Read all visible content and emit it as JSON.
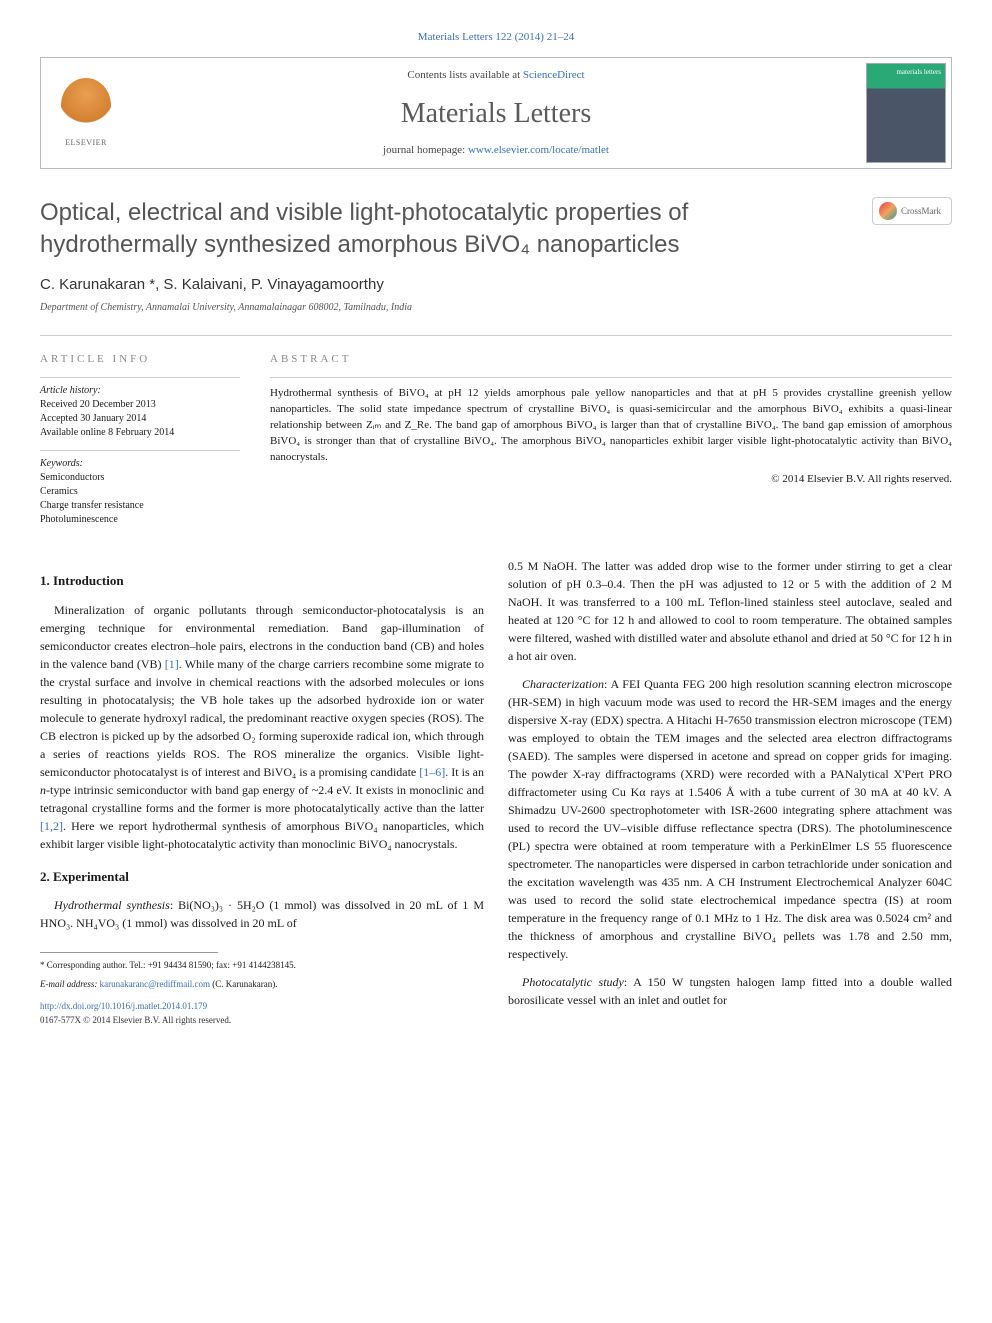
{
  "topLink": "Materials Letters 122 (2014) 21–24",
  "masthead": {
    "contentsPrefix": "Contents lists available at ",
    "contentsLink": "ScienceDirect",
    "journalName": "Materials Letters",
    "homepagePrefix": "journal homepage: ",
    "homepageLink": "www.elsevier.com/locate/matlet",
    "publisherName": "ELSEVIER",
    "coverText": "materials letters"
  },
  "title": "Optical, electrical and visible light-photocatalytic properties of hydrothermally synthesized amorphous BiVO₄ nanoparticles",
  "crossmark": "CrossMark",
  "authors": "C. Karunakaran *, S. Kalaivani, P. Vinayagamoorthy",
  "affiliation": "Department of Chemistry, Annamalai University, Annamalainagar 608002, Tamilnadu, India",
  "info": {
    "heading": "ARTICLE INFO",
    "historyLabel": "Article history:",
    "received": "Received 20 December 2013",
    "accepted": "Accepted 30 January 2014",
    "online": "Available online 8 February 2014",
    "keywordsLabel": "Keywords:",
    "kw1": "Semiconductors",
    "kw2": "Ceramics",
    "kw3": "Charge transfer resistance",
    "kw4": "Photoluminescence"
  },
  "abstract": {
    "heading": "ABSTRACT",
    "text": "Hydrothermal synthesis of BiVO₄ at pH 12 yields amorphous pale yellow nanoparticles and that at pH 5 provides crystalline greenish yellow nanoparticles. The solid state impedance spectrum of crystalline BiVO₄ is quasi-semicircular and the amorphous BiVO₄ exhibits a quasi-linear relationship between Zᵢₘ and Z_Re. The band gap of amorphous BiVO₄ is larger than that of crystalline BiVO₄. The band gap emission of amorphous BiVO₄ is stronger than that of crystalline BiVO₄. The amorphous BiVO₄ nanoparticles exhibit larger visible light-photocatalytic activity than BiVO₄ nanocrystals.",
    "copyright": "© 2014 Elsevier B.V. All rights reserved."
  },
  "sections": {
    "intro": {
      "heading": "1. Introduction",
      "p1a": "Mineralization of organic pollutants through semiconductor-photocatalysis is an emerging technique for environmental remediation. Band gap-illumination of semiconductor creates electron–hole pairs, electrons in the conduction band (CB) and holes in the valence band (VB) ",
      "ref1": "[1]",
      "p1b": ". While many of the charge carriers recombine some migrate to the crystal surface and involve in chemical reactions with the adsorbed molecules or ions resulting in photocatalysis; the VB hole takes up the adsorbed hydroxide ion or water molecule to generate hydroxyl radical, the predominant reactive oxygen species (ROS). The CB electron is picked up by the adsorbed O₂ forming superoxide radical ion, which through a series of reactions yields ROS. The ROS mineralize the organics. Visible light-semiconductor photocatalyst is of interest and BiVO₄ is a promising candidate ",
      "ref2": "[1–6]",
      "p1c": ". It is an ",
      "ital1": "n",
      "p1d": "-type intrinsic semiconductor with band gap energy of ~2.4 eV. It exists in monoclinic and tetragonal crystalline forms and the former is more photocatalytically active than the latter ",
      "ref3": "[1,2]",
      "p1e": ". Here we report hydrothermal synthesis of amorphous BiVO₄ nanoparticles, which exhibit larger visible light-photocatalytic activity than monoclinic BiVO₄ nanocrystals."
    },
    "exp": {
      "heading": "2. Experimental",
      "p1label": "Hydrothermal synthesis",
      "p1": ": Bi(NO₃)₃ · 5H₂O (1 mmol) was dissolved in 20 mL of 1 M HNO₃. NH₄VO₃ (1 mmol) was dissolved in 20 mL of",
      "p1cont": "0.5 M NaOH. The latter was added drop wise to the former under stirring to get a clear solution of pH 0.3–0.4. Then the pH was adjusted to 12 or 5 with the addition of 2 M NaOH. It was transferred to a 100 mL Teflon-lined stainless steel autoclave, sealed and heated at 120 °C for 12 h and allowed to cool to room temperature. The obtained samples were filtered, washed with distilled water and absolute ethanol and dried at 50 °C for 12 h in a hot air oven.",
      "p2label": "Characterization",
      "p2": ": A FEI Quanta FEG 200 high resolution scanning electron microscope (HR-SEM) in high vacuum mode was used to record the HR-SEM images and the energy dispersive X-ray (EDX) spectra. A Hitachi H-7650 transmission electron microscope (TEM) was employed to obtain the TEM images and the selected area electron diffractograms (SAED). The samples were dispersed in acetone and spread on copper grids for imaging. The powder X-ray diffractograms (XRD) were recorded with a PANalytical X'Pert PRO diffractometer using Cu Kα rays at 1.5406 Å with a tube current of 30 mA at 40 kV. A Shimadzu UV-2600 spectrophotometer with ISR-2600 integrating sphere attachment was used to record the UV–visible diffuse reflectance spectra (DRS). The photoluminescence (PL) spectra were obtained at room temperature with a PerkinElmer LS 55 fluorescence spectrometer. The nanoparticles were dispersed in carbon tetrachloride under sonication and the excitation wavelength was 435 nm. A CH Instrument Electrochemical Analyzer 604C was used to record the solid state electrochemical impedance spectra (IS) at room temperature in the frequency range of 0.1 MHz to 1 Hz. The disk area was 0.5024 cm² and the thickness of amorphous and crystalline BiVO₄ pellets was 1.78 and 2.50 mm, respectively.",
      "p3label": "Photocatalytic study",
      "p3": ": A 150 W tungsten halogen lamp fitted into a double walled borosilicate vessel with an inlet and outlet for"
    }
  },
  "footnote": {
    "corr": "* Corresponding author. Tel.: +91 94434 81590; fax: +91 4144238145.",
    "emailLabel": "E-mail address: ",
    "email": "karunakaranc@rediffmail.com",
    "emailName": " (C. Karunakaran)."
  },
  "doi": "http://dx.doi.org/10.1016/j.matlet.2014.01.179",
  "issn": "0167-577X © 2014 Elsevier B.V. All rights reserved."
}
